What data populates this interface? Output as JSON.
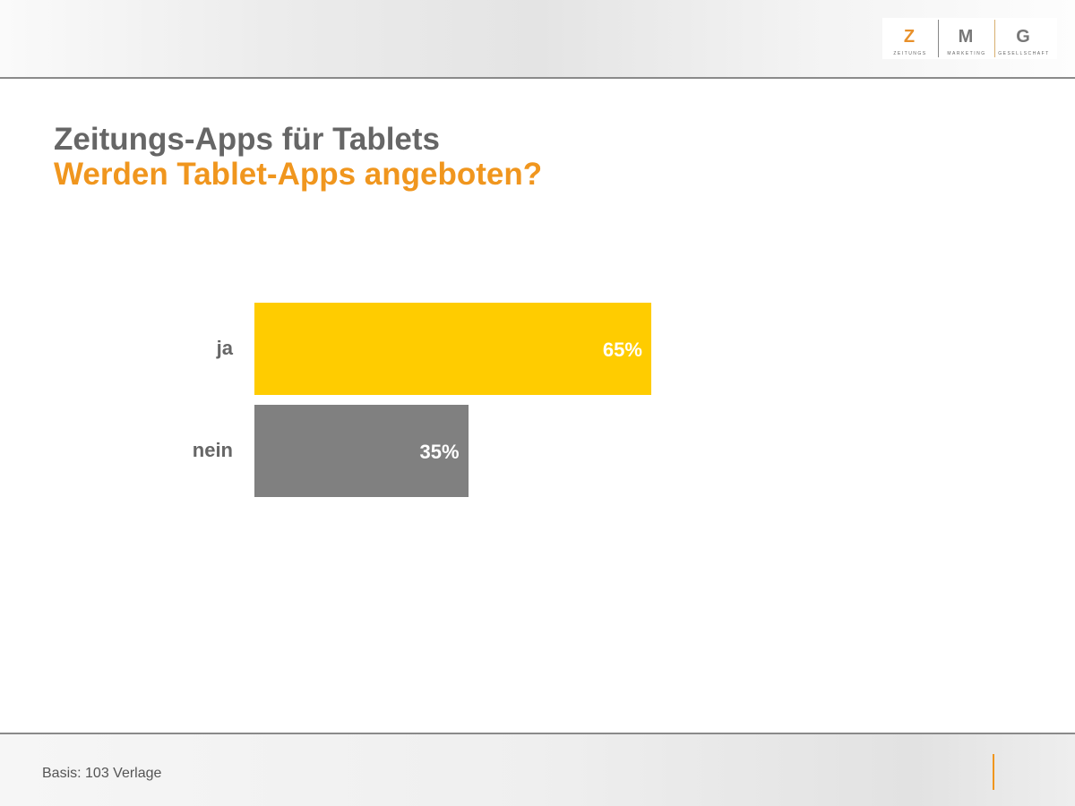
{
  "logo": {
    "letters": [
      "Z",
      "M",
      "G"
    ],
    "subs": [
      "ZEITUNGS",
      "MARKETING",
      "GESELLSCHAFT"
    ]
  },
  "header": {
    "title": "Zeitungs-Apps für Tablets",
    "subtitle": "Werden Tablet-Apps angeboten?"
  },
  "footer": {
    "note": "Basis: 103 Verlage"
  },
  "colors": {
    "ja": "#ffcc00",
    "nein": "#808080",
    "title": "#666666",
    "subtitle": "#f0961e"
  },
  "chart_data": {
    "type": "bar",
    "orientation": "horizontal",
    "categories": [
      "ja",
      "nein"
    ],
    "values": [
      65,
      35
    ],
    "value_labels": [
      "65%",
      "35%"
    ],
    "unit": "%",
    "xlim": [
      0,
      100
    ],
    "grid": false,
    "legend": "none"
  }
}
